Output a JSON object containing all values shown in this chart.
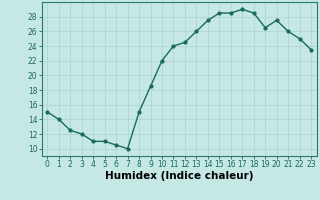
{
  "x": [
    0,
    1,
    2,
    3,
    4,
    5,
    6,
    7,
    8,
    9,
    10,
    11,
    12,
    13,
    14,
    15,
    16,
    17,
    18,
    19,
    20,
    21,
    22,
    23
  ],
  "y": [
    15,
    14,
    12.5,
    12,
    11,
    11,
    10.5,
    10,
    15,
    18.5,
    22,
    24,
    24.5,
    26,
    27.5,
    28.5,
    28.5,
    29,
    28.5,
    26.5,
    27.5,
    26,
    25,
    23.5
  ],
  "line_color": "#1a6b5a",
  "marker": "o",
  "marker_size": 2,
  "bg_color": "#c5e8e5",
  "grid_color": "#b0d5d2",
  "xlabel": "Humidex (Indice chaleur)",
  "ylabel": "",
  "title": "",
  "xlim": [
    -0.5,
    23.5
  ],
  "ylim": [
    9,
    30
  ],
  "yticks": [
    10,
    12,
    14,
    16,
    18,
    20,
    22,
    24,
    26,
    28
  ],
  "xticks": [
    0,
    1,
    2,
    3,
    4,
    5,
    6,
    7,
    8,
    9,
    10,
    11,
    12,
    13,
    14,
    15,
    16,
    17,
    18,
    19,
    20,
    21,
    22,
    23
  ],
  "xtick_labels": [
    "0",
    "1",
    "2",
    "3",
    "4",
    "5",
    "6",
    "7",
    "8",
    "9",
    "10",
    "11",
    "12",
    "13",
    "14",
    "15",
    "16",
    "17",
    "18",
    "19",
    "20",
    "21",
    "22",
    "23"
  ],
  "tick_fontsize": 5.5,
  "xlabel_fontsize": 7.5,
  "line_width": 1.0
}
